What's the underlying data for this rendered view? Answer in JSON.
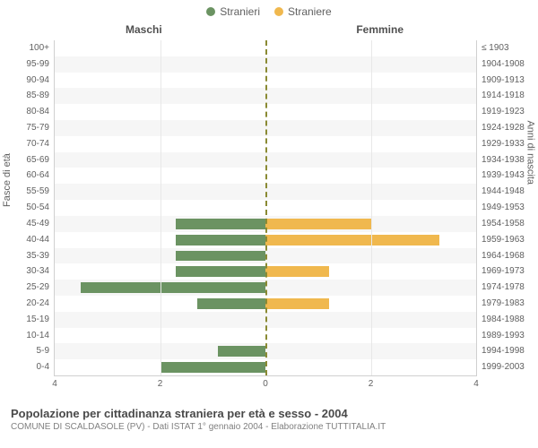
{
  "legend": {
    "male": {
      "label": "Stranieri",
      "color": "#6b9362"
    },
    "female": {
      "label": "Straniere",
      "color": "#f0b84e"
    }
  },
  "column_titles": {
    "left": "Maschi",
    "right": "Femmine"
  },
  "axis_titles": {
    "left": "Fasce di età",
    "right": "Anni di nascita"
  },
  "chart": {
    "type": "bar",
    "background_color": "#ffffff",
    "alt_row_color": "#f6f6f6",
    "grid_color": "#e8e8e8",
    "border_color": "#d0d0d0",
    "centerline_color": "#8a8a33",
    "max_value": 4,
    "x_ticks": [
      4,
      2,
      0,
      2,
      4
    ],
    "rows": [
      {
        "age": "100+",
        "years": "≤ 1903",
        "m": 0,
        "f": 0
      },
      {
        "age": "95-99",
        "years": "1904-1908",
        "m": 0,
        "f": 0
      },
      {
        "age": "90-94",
        "years": "1909-1913",
        "m": 0,
        "f": 0
      },
      {
        "age": "85-89",
        "years": "1914-1918",
        "m": 0,
        "f": 0
      },
      {
        "age": "80-84",
        "years": "1919-1923",
        "m": 0,
        "f": 0
      },
      {
        "age": "75-79",
        "years": "1924-1928",
        "m": 0,
        "f": 0
      },
      {
        "age": "70-74",
        "years": "1929-1933",
        "m": 0,
        "f": 0
      },
      {
        "age": "65-69",
        "years": "1934-1938",
        "m": 0,
        "f": 0
      },
      {
        "age": "60-64",
        "years": "1939-1943",
        "m": 0,
        "f": 0
      },
      {
        "age": "55-59",
        "years": "1944-1948",
        "m": 0,
        "f": 0
      },
      {
        "age": "50-54",
        "years": "1949-1953",
        "m": 0,
        "f": 0
      },
      {
        "age": "45-49",
        "years": "1954-1958",
        "m": 1.7,
        "f": 2
      },
      {
        "age": "40-44",
        "years": "1959-1963",
        "m": 1.7,
        "f": 3.3
      },
      {
        "age": "35-39",
        "years": "1964-1968",
        "m": 1.7,
        "f": 0
      },
      {
        "age": "30-34",
        "years": "1969-1973",
        "m": 1.7,
        "f": 1.2
      },
      {
        "age": "25-29",
        "years": "1974-1978",
        "m": 3.5,
        "f": 0
      },
      {
        "age": "20-24",
        "years": "1979-1983",
        "m": 1.3,
        "f": 1.2
      },
      {
        "age": "15-19",
        "years": "1984-1988",
        "m": 0,
        "f": 0
      },
      {
        "age": "10-14",
        "years": "1989-1993",
        "m": 0,
        "f": 0
      },
      {
        "age": "5-9",
        "years": "1994-1998",
        "m": 0.9,
        "f": 0
      },
      {
        "age": "0-4",
        "years": "1999-2003",
        "m": 2,
        "f": 0
      }
    ]
  },
  "footer": {
    "title": "Popolazione per cittadinanza straniera per età e sesso - 2004",
    "subtitle": "COMUNE DI SCALDASOLE (PV) - Dati ISTAT 1° gennaio 2004 - Elaborazione TUTTITALIA.IT"
  }
}
